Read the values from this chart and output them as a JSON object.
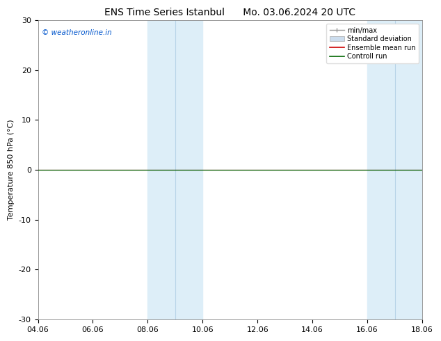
{
  "title_left": "ENS Time Series Istanbul",
  "title_right": "Mo. 03.06.2024 20 UTC",
  "ylabel": "Temperature 850 hPa (°C)",
  "watermark": "© weatheronline.in",
  "watermark_color": "#0055cc",
  "xtick_labels": [
    "04.06",
    "06.06",
    "08.06",
    "10.06",
    "12.06",
    "14.06",
    "16.06",
    "18.06"
  ],
  "xtick_positions": [
    0,
    2,
    4,
    6,
    8,
    10,
    12,
    14
  ],
  "ylim": [
    -30,
    30
  ],
  "ytick_positions": [
    -30,
    -20,
    -10,
    0,
    10,
    20,
    30
  ],
  "ytick_labels": [
    "-30",
    "-20",
    "-10",
    "0",
    "10",
    "20",
    "30"
  ],
  "bg_color": "#ffffff",
  "plot_bg_color": "#ffffff",
  "shaded_bands": [
    {
      "x_start": 4,
      "x_end": 5,
      "color": "#ddeef8"
    },
    {
      "x_start": 5,
      "x_end": 6,
      "color": "#ddeef8"
    },
    {
      "x_start": 12,
      "x_end": 13,
      "color": "#ddeef8"
    },
    {
      "x_start": 13,
      "x_end": 14,
      "color": "#ddeef8"
    }
  ],
  "band_dividers": [
    5,
    13
  ],
  "band_divider_color": "#b8d4e8",
  "zero_line_color": "#000000",
  "zero_line_lw": 0.8,
  "ensemble_mean_color": "#cc0000",
  "ensemble_mean_lw": 0.8,
  "control_run_color": "#006600",
  "control_run_lw": 0.8,
  "minmax_color": "#999999",
  "stddev_color": "#ccddee",
  "title_fontsize": 10,
  "axis_label_fontsize": 8,
  "tick_fontsize": 8,
  "legend_fontsize": 7,
  "watermark_fontsize": 7.5
}
